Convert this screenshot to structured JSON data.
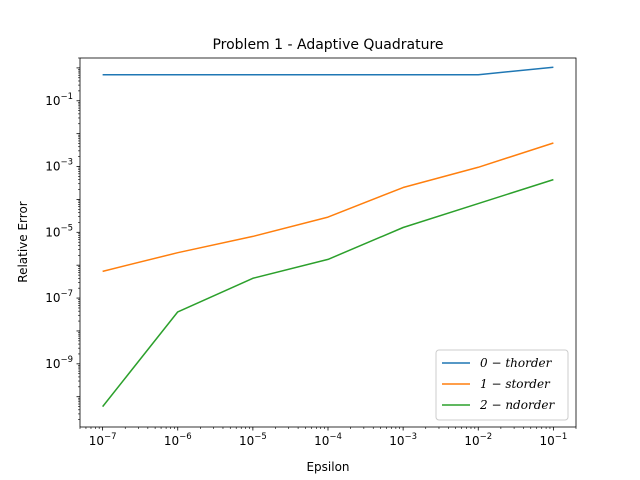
{
  "chart_data": {
    "type": "line",
    "title": "Problem 1 - Adaptive Quadrature",
    "xlabel": "Epsilon",
    "ylabel": "Relative Error",
    "xscale": "log",
    "yscale": "log",
    "xlim": [
      5e-08,
      0.2
    ],
    "ylim": [
      1.2e-11,
      2.0
    ],
    "x_tick_values": [
      1e-07,
      1e-06,
      1e-05,
      0.0001,
      0.001,
      0.01,
      0.1
    ],
    "x_tick_exponents": [
      "−7",
      "−6",
      "−5",
      "−4",
      "−3",
      "−2",
      "−1"
    ],
    "y_tick_values": [
      1e-09,
      1e-07,
      1e-05,
      0.001,
      0.1
    ],
    "y_tick_exponents": [
      "−9",
      "−7",
      "−5",
      "−3",
      "−1"
    ],
    "tick_base": "10",
    "grid": false,
    "legend_position": "lower-right",
    "x": [
      1e-07,
      1e-06,
      1e-05,
      0.0001,
      0.001,
      0.01,
      0.1
    ],
    "series": [
      {
        "name": "0 − thorder",
        "color": "#1f77b4",
        "values": [
          0.62,
          0.62,
          0.62,
          0.62,
          0.62,
          0.62,
          1.05
        ]
      },
      {
        "name": "1 − storder",
        "color": "#ff7f0e",
        "values": [
          6.5e-07,
          2.4e-06,
          7.5e-06,
          2.9e-05,
          0.00023,
          0.00095,
          0.0052
        ]
      },
      {
        "name": "2 − ndorder",
        "color": "#2ca02c",
        "values": [
          5e-11,
          3.8e-08,
          4e-07,
          1.5e-06,
          1.4e-05,
          7.5e-05,
          0.0004
        ]
      }
    ]
  }
}
